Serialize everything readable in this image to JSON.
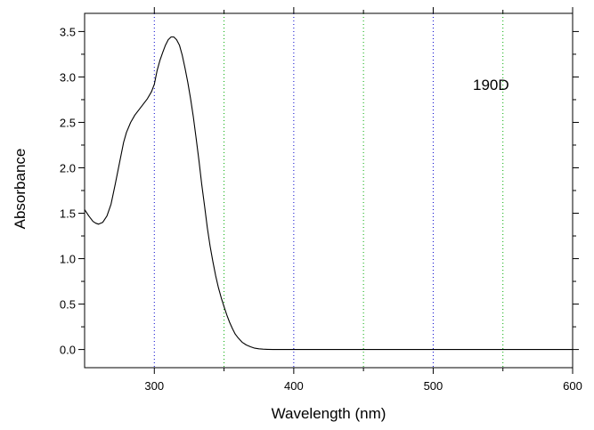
{
  "chart_data": {
    "type": "line",
    "title": "",
    "xlabel": "Wavelength (nm)",
    "ylabel": "Absorbance",
    "xlim": [
      250,
      600
    ],
    "ylim": [
      -0.2,
      3.7
    ],
    "x_ticks": [
      300,
      400,
      500,
      600
    ],
    "x_tick_labels": [
      "300",
      "400",
      "500",
      "600"
    ],
    "y_ticks": [
      0.0,
      0.5,
      1.0,
      1.5,
      2.0,
      2.5,
      3.0,
      3.5
    ],
    "y_tick_labels": [
      "0.0",
      "0.5",
      "1.0",
      "1.5",
      "2.0",
      "2.5",
      "3.0",
      "3.5"
    ],
    "grid": {
      "on": true,
      "x_positions": [
        300,
        350,
        400,
        450,
        500,
        550
      ],
      "colors": {
        "300": "#0000cc",
        "350": "#00aa00",
        "400": "#0000cc",
        "450": "#00aa00",
        "500": "#0000cc",
        "550": "#00aa00"
      }
    },
    "annotation": "190D",
    "line_color": "#000000",
    "series": [
      {
        "x": [
          250,
          253,
          256,
          258,
          260,
          263,
          266,
          269,
          272,
          275,
          278,
          280,
          283,
          286,
          289,
          292,
          295,
          298,
          300,
          302,
          304,
          306,
          308,
          310,
          312,
          314,
          316,
          318,
          320,
          322,
          324,
          326,
          328,
          330,
          332,
          334,
          336,
          338,
          340,
          342,
          344,
          346,
          348,
          350,
          352,
          354,
          356,
          358,
          360,
          363,
          366,
          369,
          372,
          375,
          378,
          381,
          385,
          390,
          400,
          450,
          500,
          550,
          600
        ],
        "y": [
          1.54,
          1.47,
          1.41,
          1.39,
          1.38,
          1.4,
          1.47,
          1.6,
          1.82,
          2.05,
          2.28,
          2.39,
          2.5,
          2.58,
          2.64,
          2.7,
          2.76,
          2.84,
          2.92,
          3.07,
          3.18,
          3.27,
          3.35,
          3.41,
          3.44,
          3.44,
          3.41,
          3.35,
          3.24,
          3.1,
          2.94,
          2.76,
          2.56,
          2.32,
          2.08,
          1.82,
          1.58,
          1.34,
          1.14,
          0.97,
          0.81,
          0.68,
          0.57,
          0.47,
          0.38,
          0.3,
          0.23,
          0.17,
          0.13,
          0.08,
          0.05,
          0.03,
          0.015,
          0.008,
          0.004,
          0.002,
          0.0,
          0.0,
          0.0,
          0.0,
          0.0,
          0.0,
          0.0
        ]
      }
    ]
  }
}
